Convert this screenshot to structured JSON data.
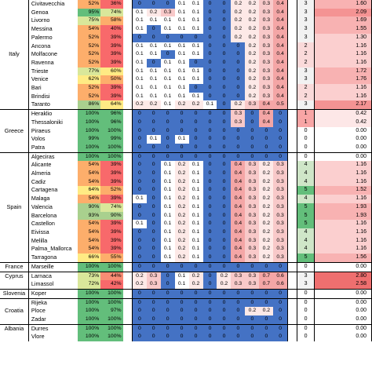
{
  "colors": {
    "dark_green": "#63be7b",
    "mid_green": "#a9d08e",
    "yellow": "#ffeb84",
    "orange": "#fdae6b",
    "red": "#f8696b",
    "blue": "#4472c4",
    "light_blue": "#bdd7ee",
    "pale_pink": "#fde9e7",
    "pink": "#f8c9c9",
    "white": "#ffffff"
  },
  "rows": [
    {
      "country": "",
      "port": "Civitavecchia",
      "p1": "52%",
      "p2": "36%",
      "c": [
        "0",
        "0",
        "0",
        "0.1",
        "0.1",
        "0",
        "0",
        "0.2",
        "0.2",
        "0.3",
        "0.4"
      ],
      "count": "3",
      "value": "1.60"
    },
    {
      "country": "",
      "port": "Genoa",
      "p1": "95%",
      "p2": "74%",
      "c": [
        "0.1",
        "0.2",
        "0.3",
        "0.1",
        "0.1",
        "0",
        "0",
        "0.2",
        "0.2",
        "0.3",
        "0.4"
      ],
      "count": "3",
      "value": "2.09"
    },
    {
      "country": "",
      "port": "Livorno",
      "p1": "75%",
      "p2": "58%",
      "c": [
        "0.1",
        "0.1",
        "0.1",
        "0.1",
        "0.1",
        "0",
        "0",
        "0.2",
        "0.2",
        "0.3",
        "0.4"
      ],
      "count": "3",
      "value": "1.69"
    },
    {
      "country": "",
      "port": "Messina",
      "p1": "54%",
      "p2": "40%",
      "c": [
        "0.1",
        "0",
        "0.1",
        "0.1",
        "0.1",
        "0",
        "0",
        "0.2",
        "0.2",
        "0.3",
        "0.4"
      ],
      "count": "3",
      "value": "1.55"
    },
    {
      "country": "",
      "port": "Palermo",
      "p1": "52%",
      "p2": "39%",
      "c": [
        "0",
        "0",
        "0",
        "0",
        "0",
        "0",
        "0",
        "0.2",
        "0.2",
        "0.3",
        "0.4"
      ],
      "count": "3",
      "value": "1.30"
    },
    {
      "country": "",
      "port": "Ancona",
      "p1": "52%",
      "p2": "39%",
      "c": [
        "0.1",
        "0.1",
        "0.1",
        "0.1",
        "0.1",
        "0",
        "0",
        "0",
        "0.2",
        "0.3",
        "0.4"
      ],
      "count": "2",
      "value": "1.16"
    },
    {
      "country": "Italy",
      "port": "Molfacone",
      "p1": "52%",
      "p2": "39%",
      "c": [
        "0.1",
        "0.1",
        "0",
        "0.1",
        "0.1",
        "0",
        "0",
        "0",
        "0.2",
        "0.3",
        "0.4"
      ],
      "count": "2",
      "value": "1.16"
    },
    {
      "country": "",
      "port": "Ravenna",
      "p1": "52%",
      "p2": "39%",
      "c": [
        "0.1",
        "0",
        "0.1",
        "0.1",
        "0",
        "0",
        "0",
        "0",
        "0.2",
        "0.3",
        "0.4"
      ],
      "count": "2",
      "value": "1.16"
    },
    {
      "country": "",
      "port": "Trieste",
      "p1": "77%",
      "p2": "60%",
      "c": [
        "0.1",
        "0.1",
        "0.1",
        "0.1",
        "0.1",
        "0",
        "0",
        "0",
        "0.2",
        "0.3",
        "0.4"
      ],
      "count": "3",
      "value": "1.72"
    },
    {
      "country": "",
      "port": "Venice",
      "p1": "62%",
      "p2": "50%",
      "c": [
        "0.1",
        "0.1",
        "0.1",
        "0.1",
        "0.1",
        "0",
        "0",
        "0",
        "0.2",
        "0.3",
        "0.4"
      ],
      "count": "3",
      "value": "1.76"
    },
    {
      "country": "",
      "port": "Bari",
      "p1": "52%",
      "p2": "39%",
      "c": [
        "0.1",
        "0.1",
        "0.1",
        "0.1",
        "0",
        "0",
        "0",
        "0",
        "0.2",
        "0.3",
        "0.4"
      ],
      "count": "2",
      "value": "1.16"
    },
    {
      "country": "",
      "port": "Brindisi",
      "p1": "52%",
      "p2": "39%",
      "c": [
        "0.1",
        "0.1",
        "0.1",
        "0.1",
        "0.1",
        "0",
        "0",
        "0",
        "0.2",
        "0.3",
        "0.4"
      ],
      "count": "2",
      "value": "1.16"
    },
    {
      "country": "",
      "port": "Taranto",
      "p1": "86%",
      "p2": "64%",
      "c": [
        "0.2",
        "0.2",
        "0.1",
        "0.2",
        "0.2",
        "0.1",
        "0",
        "0.2",
        "0.3",
        "0.4",
        "0.5"
      ],
      "count": "3",
      "value": "2.17"
    },
    {
      "country": "",
      "port": "Heraklio",
      "p1": "100%",
      "p2": "96%",
      "c": [
        "0",
        "0",
        "0",
        "0",
        "0",
        "0",
        "0",
        "0.3",
        "0",
        "0.4",
        "0"
      ],
      "count": "1",
      "value": "0.42"
    },
    {
      "country": "",
      "port": "Thessaloniki",
      "p1": "100%",
      "p2": "96%",
      "c": [
        "0",
        "0",
        "0",
        "0",
        "0",
        "0",
        "0",
        "0.3",
        "0",
        "0.4",
        "0"
      ],
      "count": "1",
      "value": "0.42"
    },
    {
      "country": "Greece",
      "port": "Piraeus",
      "p1": "100%",
      "p2": "100%",
      "c": [
        "0",
        "0",
        "0",
        "0",
        "0",
        "0",
        "0",
        "0",
        "0",
        "0",
        "0"
      ],
      "count": "0",
      "value": "0.00"
    },
    {
      "country": "",
      "port": "Volos",
      "p1": "99%",
      "p2": "99%",
      "c": [
        "0",
        "0.1",
        "0",
        "0.1",
        "0",
        "0",
        "0",
        "0",
        "0",
        "0",
        "0"
      ],
      "count": "0",
      "value": "0.00"
    },
    {
      "country": "",
      "port": "Patra",
      "p1": "100%",
      "p2": "100%",
      "c": [
        "0",
        "0",
        "0",
        "0",
        "0",
        "0",
        "0",
        "0",
        "0",
        "0",
        "0"
      ],
      "count": "0",
      "value": "0.00"
    },
    {
      "country": "",
      "port": "Algeciras",
      "p1": "100%",
      "p2": "100%",
      "c": [
        "0",
        "0",
        "0",
        "0",
        "0",
        "0",
        "0",
        "0",
        "0",
        "0",
        "0"
      ],
      "count": "0",
      "value": "0.00"
    },
    {
      "country": "",
      "port": "Alicante",
      "p1": "54%",
      "p2": "39%",
      "c": [
        "0",
        "0",
        "0.1",
        "0.2",
        "0.1",
        "0",
        "0",
        "0.4",
        "0.3",
        "0.2",
        "0.3"
      ],
      "count": "4",
      "value": "1.16"
    },
    {
      "country": "",
      "port": "Almeria",
      "p1": "54%",
      "p2": "39%",
      "c": [
        "0",
        "0",
        "0.1",
        "0.2",
        "0.1",
        "0",
        "0",
        "0.4",
        "0.3",
        "0.2",
        "0.3"
      ],
      "count": "4",
      "value": "1.16"
    },
    {
      "country": "",
      "port": "Cadiz",
      "p1": "54%",
      "p2": "39%",
      "c": [
        "0",
        "0",
        "0.1",
        "0.2",
        "0.1",
        "0",
        "0",
        "0.4",
        "0.3",
        "0.2",
        "0.3"
      ],
      "count": "4",
      "value": "1.16"
    },
    {
      "country": "",
      "port": "Cartagena",
      "p1": "64%",
      "p2": "52%",
      "c": [
        "0",
        "0",
        "0.1",
        "0.2",
        "0.1",
        "0",
        "0",
        "0.4",
        "0.3",
        "0.2",
        "0.3"
      ],
      "count": "5",
      "value": "1.52"
    },
    {
      "country": "",
      "port": "Malaga",
      "p1": "54%",
      "p2": "39%",
      "c": [
        "0.1",
        "0",
        "0.1",
        "0.2",
        "0.1",
        "0",
        "0",
        "0.4",
        "0.3",
        "0.2",
        "0.3"
      ],
      "count": "4",
      "value": "1.16"
    },
    {
      "country": "Spain",
      "port": "Valencia",
      "p1": "90%",
      "p2": "74%",
      "c": [
        "0",
        "0",
        "0.1",
        "0.2",
        "0.1",
        "0",
        "0",
        "0.4",
        "0.3",
        "0.2",
        "0.3"
      ],
      "count": "5",
      "value": "1.93"
    },
    {
      "country": "",
      "port": "Barcelona",
      "p1": "93%",
      "p2": "90%",
      "c": [
        "0",
        "0",
        "0.1",
        "0.2",
        "0.1",
        "0",
        "0",
        "0.4",
        "0.3",
        "0.2",
        "0.3"
      ],
      "count": "5",
      "value": "1.93"
    },
    {
      "country": "",
      "port": "Castellon",
      "p1": "54%",
      "p2": "39%",
      "c": [
        "0.1",
        "0",
        "0.1",
        "0.2",
        "0.1",
        "0",
        "0",
        "0.4",
        "0.3",
        "0.2",
        "0.3"
      ],
      "count": "5",
      "value": "1.16"
    },
    {
      "country": "",
      "port": "Eivissa",
      "p1": "54%",
      "p2": "39%",
      "c": [
        "0",
        "0",
        "0.1",
        "0.2",
        "0.1",
        "0",
        "0",
        "0.4",
        "0.3",
        "0.2",
        "0.3"
      ],
      "count": "4",
      "value": "1.16"
    },
    {
      "country": "",
      "port": "Melilla",
      "p1": "54%",
      "p2": "39%",
      "c": [
        "0",
        "0",
        "0.1",
        "0.2",
        "0.1",
        "0",
        "0",
        "0.4",
        "0.3",
        "0.2",
        "0.3"
      ],
      "count": "4",
      "value": "1.16"
    },
    {
      "country": "",
      "port": "Palma_Mallorca",
      "p1": "54%",
      "p2": "39%",
      "c": [
        "0",
        "0",
        "0.1",
        "0.2",
        "0.1",
        "0",
        "0",
        "0.4",
        "0.3",
        "0.2",
        "0.3"
      ],
      "count": "4",
      "value": "1.16"
    },
    {
      "country": "",
      "port": "Tarragona",
      "p1": "66%",
      "p2": "55%",
      "c": [
        "0",
        "0",
        "0.1",
        "0.2",
        "0.1",
        "0",
        "0",
        "0.4",
        "0.3",
        "0.2",
        "0.3"
      ],
      "count": "5",
      "value": "1.56"
    },
    {
      "country": "France",
      "port": "Marseille",
      "p1": "100%",
      "p2": "100%",
      "c": [
        "0",
        "0",
        "0",
        "0",
        "0",
        "0",
        "0",
        "0",
        "0",
        "0",
        "0"
      ],
      "count": "0",
      "value": "0.00"
    },
    {
      "country": "Cyprus",
      "port": "Larnaca",
      "p1": "73%",
      "p2": "44%",
      "c": [
        "0.2",
        "0.3",
        "0",
        "0.1",
        "0.2",
        "0",
        "0.2",
        "0.3",
        "0.3",
        "0.7",
        "0.6"
      ],
      "count": "3",
      "value": "2.80"
    },
    {
      "country": "",
      "port": "Limassol",
      "p1": "72%",
      "p2": "42%",
      "c": [
        "0.2",
        "0.3",
        "0",
        "0.1",
        "0.2",
        "0",
        "0.2",
        "0.3",
        "0.3",
        "0.7",
        "0.6"
      ],
      "count": "3",
      "value": "2.58"
    },
    {
      "country": "Slovenia",
      "port": "Koper",
      "p1": "100%",
      "p2": "100%",
      "c": [
        "0",
        "0",
        "0",
        "0",
        "0",
        "0",
        "0",
        "0",
        "0",
        "0",
        "0"
      ],
      "count": "0",
      "value": "0.00"
    },
    {
      "country": "",
      "port": "Rijeka",
      "p1": "100%",
      "p2": "100%",
      "c": [
        "0",
        "0",
        "0",
        "0",
        "0",
        "0",
        "0",
        "0",
        "0",
        "0",
        "0"
      ],
      "count": "0",
      "value": "0.00"
    },
    {
      "country": "Croatia",
      "port": "Ploce",
      "p1": "100%",
      "p2": "97%",
      "c": [
        "0",
        "0",
        "0",
        "0",
        "0",
        "0",
        "0",
        "0",
        "0.2",
        "0.2",
        "0"
      ],
      "count": "0",
      "value": "0.00"
    },
    {
      "country": "",
      "port": "Zadar",
      "p1": "100%",
      "p2": "100%",
      "c": [
        "0",
        "0",
        "0",
        "0",
        "0",
        "0",
        "0",
        "0",
        "0",
        "0",
        "0"
      ],
      "count": "0",
      "value": "0.00"
    },
    {
      "country": "Albania",
      "port": "Durres",
      "p1": "100%",
      "p2": "100%",
      "c": [
        "0",
        "0",
        "0",
        "0",
        "0",
        "0",
        "0",
        "0",
        "0",
        "0",
        "0"
      ],
      "count": "0",
      "value": "0.00"
    },
    {
      "country": "",
      "port": "Vlore",
      "p1": "100%",
      "p2": "100%",
      "c": [
        "0",
        "0",
        "0",
        "0",
        "0",
        "0",
        "0",
        "0",
        "0",
        "0",
        "0"
      ],
      "count": "0",
      "value": "0.00"
    }
  ],
  "groups": [
    0,
    13,
    18,
    31,
    32,
    34,
    35,
    38
  ]
}
